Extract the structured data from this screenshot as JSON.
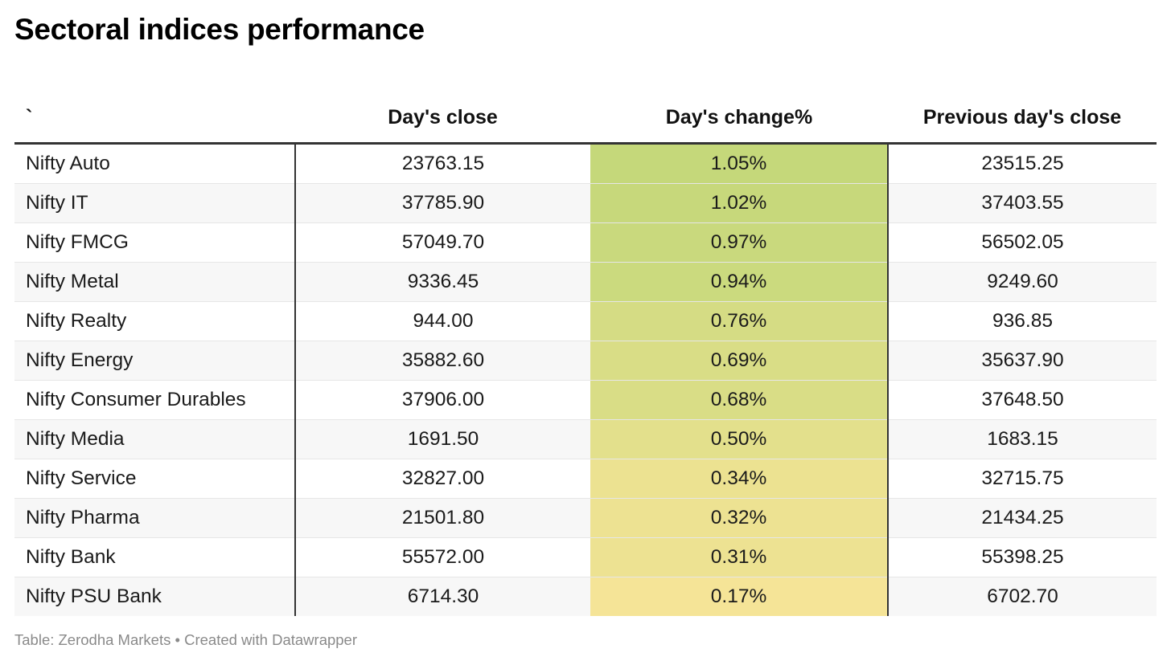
{
  "title": "Sectoral indices performance",
  "footer": "Table: Zerodha Markets • Created with Datawrapper",
  "chart_data": {
    "type": "table",
    "columns": [
      "`",
      "Day's close",
      "Day's change%",
      "Previous day's close"
    ],
    "rows": [
      {
        "name": "Nifty Auto",
        "close": "23763.15",
        "change": "1.05%",
        "change_value": 1.05,
        "prev": "23515.25"
      },
      {
        "name": "Nifty IT",
        "close": "37785.90",
        "change": "1.02%",
        "change_value": 1.02,
        "prev": "37403.55"
      },
      {
        "name": "Nifty FMCG",
        "close": "57049.70",
        "change": "0.97%",
        "change_value": 0.97,
        "prev": "56502.05"
      },
      {
        "name": "Nifty Metal",
        "close": "9336.45",
        "change": "0.94%",
        "change_value": 0.94,
        "prev": "9249.60"
      },
      {
        "name": "Nifty Realty",
        "close": "944.00",
        "change": "0.76%",
        "change_value": 0.76,
        "prev": "936.85"
      },
      {
        "name": "Nifty Energy",
        "close": "35882.60",
        "change": "0.69%",
        "change_value": 0.69,
        "prev": "35637.90"
      },
      {
        "name": "Nifty Consumer Durables",
        "close": "37906.00",
        "change": "0.68%",
        "change_value": 0.68,
        "prev": "37648.50"
      },
      {
        "name": "Nifty Media",
        "close": "1691.50",
        "change": "0.50%",
        "change_value": 0.5,
        "prev": "1683.15"
      },
      {
        "name": "Nifty Service",
        "close": "32827.00",
        "change": "0.34%",
        "change_value": 0.34,
        "prev": "32715.75"
      },
      {
        "name": "Nifty Pharma",
        "close": "21501.80",
        "change": "0.32%",
        "change_value": 0.32,
        "prev": "21434.25"
      },
      {
        "name": "Nifty Bank",
        "close": "55572.00",
        "change": "0.31%",
        "change_value": 0.31,
        "prev": "55398.25"
      },
      {
        "name": "Nifty PSU Bank",
        "close": "6714.30",
        "change": "0.17%",
        "change_value": 0.17,
        "prev": "6702.70"
      }
    ],
    "heatmap": {
      "column": "Day's change%",
      "low_color": "#f5e497",
      "high_color": "#c5d87a"
    }
  }
}
